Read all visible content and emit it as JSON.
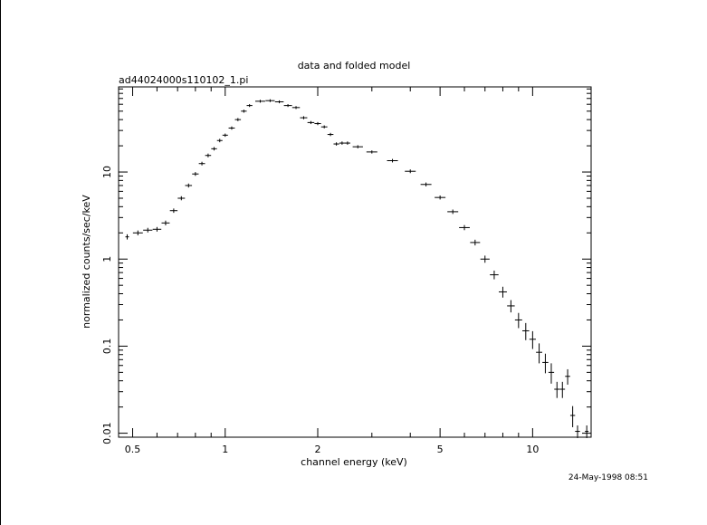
{
  "chart_data": {
    "type": "scatter",
    "title": "data and folded model",
    "subtitle": "ad44024000s110102_1.pi",
    "xlabel": "channel energy (keV)",
    "ylabel": "normalized counts/sec/keV",
    "timestamp": "24-May-1998 08:51",
    "x_scale": "log",
    "y_scale": "log",
    "xlim": [
      0.45,
      15.5
    ],
    "ylim": [
      0.009,
      95
    ],
    "x_ticks": [
      {
        "value": 0.5,
        "label": "0.5"
      },
      {
        "value": 1,
        "label": "1"
      },
      {
        "value": 2,
        "label": "2"
      },
      {
        "value": 5,
        "label": "5"
      },
      {
        "value": 10,
        "label": "10"
      }
    ],
    "y_ticks": [
      {
        "value": 0.01,
        "label": "0.01"
      },
      {
        "value": 0.1,
        "label": "0.1"
      },
      {
        "value": 1,
        "label": "1"
      },
      {
        "value": 10,
        "label": "10"
      }
    ],
    "grid": false,
    "series": [
      {
        "x": [
          0.48,
          0.52,
          0.56,
          0.6,
          0.64,
          0.68,
          0.72,
          0.76,
          0.8,
          0.84,
          0.88,
          0.92,
          0.96,
          1.0,
          1.05,
          1.1,
          1.15,
          1.2,
          1.3,
          1.4,
          1.5,
          1.6,
          1.7,
          1.8,
          1.9,
          2.0,
          2.1,
          2.2,
          2.3,
          2.4,
          2.5,
          2.7,
          3.0,
          3.5,
          4.0,
          4.5,
          5.0,
          5.5,
          6.0,
          6.5,
          7.0,
          7.5,
          8.0,
          8.5,
          9.0,
          9.5,
          10.0,
          10.5,
          11.0,
          11.5,
          12.0,
          12.5,
          13.0,
          13.5,
          14.0,
          15.0
        ],
        "y": [
          1.8,
          2.0,
          2.15,
          2.2,
          2.6,
          3.6,
          5.0,
          7.0,
          9.5,
          12.5,
          15.5,
          18.5,
          23.0,
          26.5,
          32.0,
          40.0,
          50.0,
          58.0,
          65.0,
          66.0,
          64.0,
          58.0,
          55.0,
          42.0,
          37.0,
          36.0,
          33.0,
          27.0,
          21.0,
          21.5,
          21.5,
          19.5,
          17.0,
          13.5,
          10.2,
          7.2,
          5.1,
          3.5,
          2.3,
          1.55,
          1.0,
          0.66,
          0.42,
          0.29,
          0.2,
          0.15,
          0.12,
          0.085,
          0.065,
          0.05,
          0.032,
          0.032,
          0.045,
          0.016,
          0.0105,
          0.0105
        ],
        "yerr": [
          0.08,
          0.08,
          0.08,
          0.08,
          0.1,
          0.12,
          0.15,
          0.2,
          0.25,
          0.3,
          0.4,
          0.4,
          0.5,
          0.5,
          0.6,
          0.7,
          0.8,
          0.8,
          0.9,
          0.9,
          0.9,
          0.8,
          0.8,
          0.7,
          0.6,
          0.6,
          0.5,
          0.5,
          0.4,
          0.4,
          0.4,
          0.35,
          0.3,
          0.3,
          0.25,
          0.2,
          0.15,
          0.12,
          0.1,
          0.08,
          0.07,
          0.06,
          0.05,
          0.04,
          0.035,
          0.03,
          0.025,
          0.02,
          0.015,
          0.012,
          0.006,
          0.006,
          0.008,
          0.004,
          0.0015,
          0.0015
        ]
      }
    ]
  }
}
